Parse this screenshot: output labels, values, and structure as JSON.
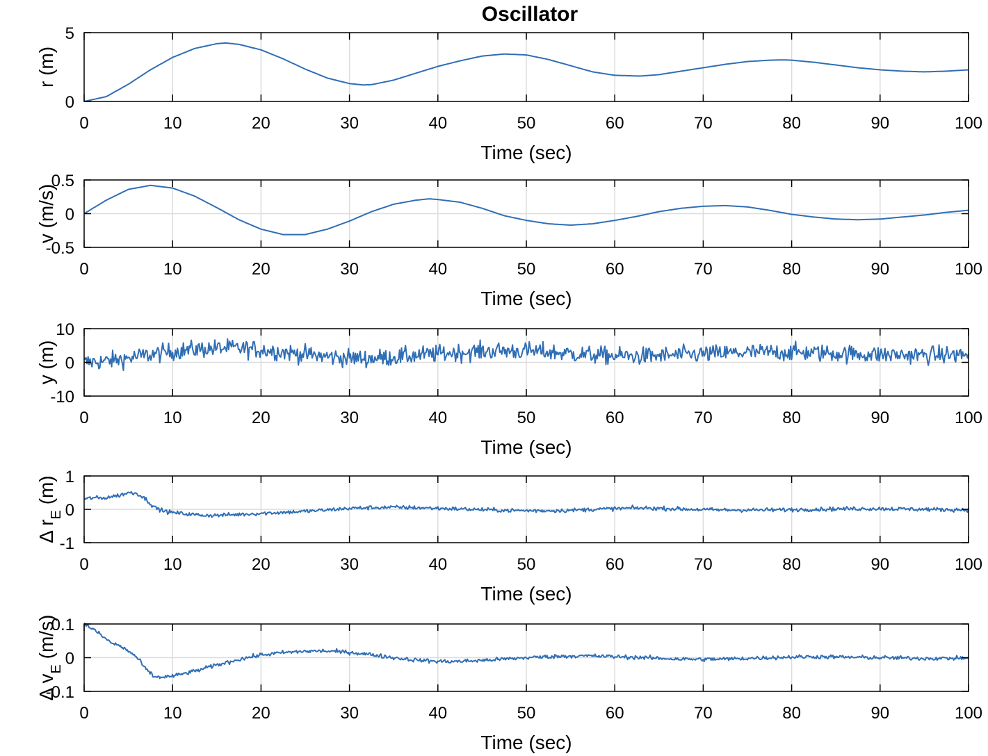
{
  "chart_data": [
    {
      "type": "line",
      "title": "Oscillator",
      "xlabel": "Time (sec)",
      "ylabel": "r (m)",
      "xlim": [
        0,
        100
      ],
      "ylim": [
        0,
        5
      ],
      "xticks": [
        "0",
        "10",
        "20",
        "30",
        "40",
        "50",
        "60",
        "70",
        "80",
        "90",
        "100"
      ],
      "yticks": [
        "0",
        "5"
      ],
      "ytick_values": [
        0,
        5
      ],
      "grid": true,
      "series": [
        {
          "name": "r",
          "x": [
            0,
            2.5,
            5,
            7.5,
            10,
            12.5,
            15,
            16,
            17.5,
            20,
            22.5,
            25,
            27.5,
            30,
            31.5,
            32.5,
            35,
            37.5,
            40,
            42.5,
            45,
            47.5,
            50,
            52.5,
            55,
            57.5,
            60,
            62.5,
            63,
            65,
            67.5,
            70,
            72.5,
            75,
            77.5,
            79,
            80,
            82.5,
            85,
            87.5,
            90,
            92.5,
            95,
            97.5,
            100
          ],
          "values": [
            0,
            0.35,
            1.25,
            2.3,
            3.2,
            3.85,
            4.2,
            4.25,
            4.15,
            3.75,
            3.1,
            2.35,
            1.7,
            1.3,
            1.2,
            1.22,
            1.55,
            2.05,
            2.55,
            2.95,
            3.3,
            3.45,
            3.38,
            3.05,
            2.6,
            2.15,
            1.9,
            1.85,
            1.85,
            1.95,
            2.2,
            2.45,
            2.7,
            2.9,
            3.0,
            3.02,
            3.0,
            2.85,
            2.65,
            2.45,
            2.3,
            2.2,
            2.15,
            2.2,
            2.3
          ]
        }
      ]
    },
    {
      "type": "line",
      "xlabel": "Time (sec)",
      "ylabel": "v (m/s)",
      "xlim": [
        0,
        100
      ],
      "ylim": [
        -0.5,
        0.5
      ],
      "xticks": [
        "0",
        "10",
        "20",
        "30",
        "40",
        "50",
        "60",
        "70",
        "80",
        "90",
        "100"
      ],
      "yticks": [
        "-0.5",
        "0",
        "0.5"
      ],
      "ytick_values": [
        -0.5,
        0,
        0.5
      ],
      "grid": true,
      "series": [
        {
          "name": "v",
          "x": [
            0,
            2.5,
            5,
            7.5,
            10,
            12.5,
            15,
            17.5,
            20,
            22.5,
            25,
            27.5,
            30,
            32.5,
            35,
            37.5,
            39,
            40,
            42.5,
            45,
            47.5,
            50,
            52.5,
            55,
            57.5,
            60,
            62.5,
            65,
            67.5,
            70,
            72.5,
            75,
            77.5,
            80,
            82.5,
            85,
            87.5,
            90,
            92.5,
            95,
            97.5,
            100
          ],
          "values": [
            0,
            0.2,
            0.36,
            0.42,
            0.38,
            0.26,
            0.09,
            -0.09,
            -0.23,
            -0.31,
            -0.31,
            -0.23,
            -0.11,
            0.03,
            0.14,
            0.2,
            0.22,
            0.21,
            0.17,
            0.08,
            -0.03,
            -0.1,
            -0.15,
            -0.17,
            -0.15,
            -0.1,
            -0.04,
            0.03,
            0.08,
            0.11,
            0.12,
            0.1,
            0.05,
            -0.01,
            -0.05,
            -0.08,
            -0.09,
            -0.08,
            -0.05,
            -0.02,
            0.02,
            0.05
          ]
        }
      ]
    },
    {
      "type": "line",
      "xlabel": "Time (sec)",
      "ylabel": "y (m)",
      "xlim": [
        0,
        100
      ],
      "ylim": [
        -10,
        10
      ],
      "xticks": [
        "0",
        "10",
        "20",
        "30",
        "40",
        "50",
        "60",
        "70",
        "80",
        "90",
        "100"
      ],
      "yticks": [
        "-10",
        "0",
        "10"
      ],
      "ytick_values": [
        -10,
        0,
        10
      ],
      "grid": true,
      "noise_amplitude": 1.3,
      "series": [
        {
          "name": "y",
          "x": [
            0,
            2.5,
            5,
            7.5,
            10,
            12.5,
            15,
            16,
            17.5,
            20,
            22.5,
            25,
            27.5,
            30,
            31.5,
            32.5,
            35,
            37.5,
            40,
            42.5,
            45,
            47.5,
            50,
            52.5,
            55,
            57.5,
            60,
            62.5,
            63,
            65,
            67.5,
            70,
            72.5,
            75,
            77.5,
            79,
            80,
            82.5,
            85,
            87.5,
            90,
            92.5,
            95,
            97.5,
            100
          ],
          "values": [
            0,
            0.35,
            1.25,
            2.3,
            3.2,
            3.85,
            4.2,
            4.25,
            4.15,
            3.75,
            3.1,
            2.35,
            1.7,
            1.3,
            1.2,
            1.22,
            1.55,
            2.05,
            2.55,
            2.95,
            3.3,
            3.45,
            3.38,
            3.05,
            2.6,
            2.15,
            1.9,
            1.85,
            1.85,
            1.95,
            2.2,
            2.45,
            2.7,
            2.9,
            3.0,
            3.02,
            3.0,
            2.85,
            2.65,
            2.45,
            2.3,
            2.2,
            2.15,
            2.2,
            2.3
          ]
        }
      ]
    },
    {
      "type": "line",
      "xlabel": "Time (sec)",
      "ylabel_main": "Δ r",
      "ylabel_sub": "E",
      "ylabel_unit": "(m)",
      "xlim": [
        0,
        100
      ],
      "ylim": [
        -1,
        1
      ],
      "xticks": [
        "0",
        "10",
        "20",
        "30",
        "40",
        "50",
        "60",
        "70",
        "80",
        "90",
        "100"
      ],
      "yticks": [
        "-1",
        "0",
        "1"
      ],
      "ytick_values": [
        -1,
        0,
        1
      ],
      "grid": true,
      "noise_amplitude": 0.03,
      "series": [
        {
          "name": "delta r_E",
          "x": [
            0,
            1,
            2,
            3,
            4,
            5,
            6,
            7,
            8,
            9,
            10,
            11,
            12,
            13,
            14,
            15,
            17,
            20,
            22.5,
            25,
            27.5,
            30,
            32.5,
            35,
            37.5,
            40,
            42.5,
            45,
            47.5,
            50,
            52.5,
            55,
            57.5,
            60,
            62.5,
            65,
            67.5,
            70,
            72.5,
            75,
            77.5,
            80,
            82.5,
            85,
            87.5,
            90,
            92.5,
            95,
            97.5,
            100
          ],
          "values": [
            0.3,
            0.35,
            0.33,
            0.38,
            0.42,
            0.5,
            0.48,
            0.3,
            0.05,
            -0.05,
            -0.1,
            -0.12,
            -0.15,
            -0.17,
            -0.18,
            -0.18,
            -0.16,
            -0.12,
            -0.09,
            -0.06,
            -0.02,
            0.03,
            0.05,
            0.06,
            0.05,
            0.03,
            0.01,
            -0.01,
            -0.03,
            -0.04,
            -0.04,
            -0.03,
            0.0,
            0.02,
            0.04,
            0.03,
            0.01,
            -0.01,
            -0.02,
            -0.02,
            -0.02,
            -0.01,
            0.0,
            0.01,
            0.02,
            0.02,
            0.01,
            0.0,
            -0.01,
            -0.01
          ]
        }
      ]
    },
    {
      "type": "line",
      "xlabel": "Time (sec)",
      "ylabel_main": "Δ v",
      "ylabel_sub": "E",
      "ylabel_unit": "(m/s)",
      "xlim": [
        0,
        100
      ],
      "ylim": [
        -0.1,
        0.1
      ],
      "xticks": [
        "0",
        "10",
        "20",
        "30",
        "40",
        "50",
        "60",
        "70",
        "80",
        "90",
        "100"
      ],
      "yticks": [
        "-0.1",
        "0",
        "0.1"
      ],
      "ytick_values": [
        -0.1,
        0,
        0.1
      ],
      "grid": true,
      "noise_amplitude": 0.003,
      "series": [
        {
          "name": "delta v_E",
          "x": [
            0,
            1,
            2,
            3,
            4,
            5,
            6,
            7,
            8,
            9,
            10,
            12.5,
            15,
            17.5,
            20,
            22.5,
            25,
            27,
            30,
            32.5,
            35,
            37.5,
            40,
            42.5,
            45,
            47.5,
            50,
            52.5,
            55,
            57.5,
            60,
            62.5,
            65,
            67.5,
            70,
            72.5,
            75,
            77.5,
            80,
            82.5,
            85,
            87.5,
            90,
            92.5,
            95,
            97.5,
            100
          ],
          "values": [
            0.1,
            0.085,
            0.065,
            0.045,
            0.035,
            0.02,
            0.0,
            -0.035,
            -0.058,
            -0.057,
            -0.055,
            -0.04,
            -0.022,
            -0.005,
            0.008,
            0.015,
            0.019,
            0.02,
            0.016,
            0.009,
            0.0,
            -0.007,
            -0.011,
            -0.011,
            -0.008,
            -0.004,
            0.0,
            0.003,
            0.005,
            0.005,
            0.003,
            0.001,
            -0.002,
            -0.004,
            -0.005,
            -0.004,
            -0.002,
            0.0,
            0.002,
            0.003,
            0.002,
            0.001,
            0.0,
            -0.001,
            -0.002,
            -0.002,
            -0.001
          ]
        }
      ]
    }
  ]
}
